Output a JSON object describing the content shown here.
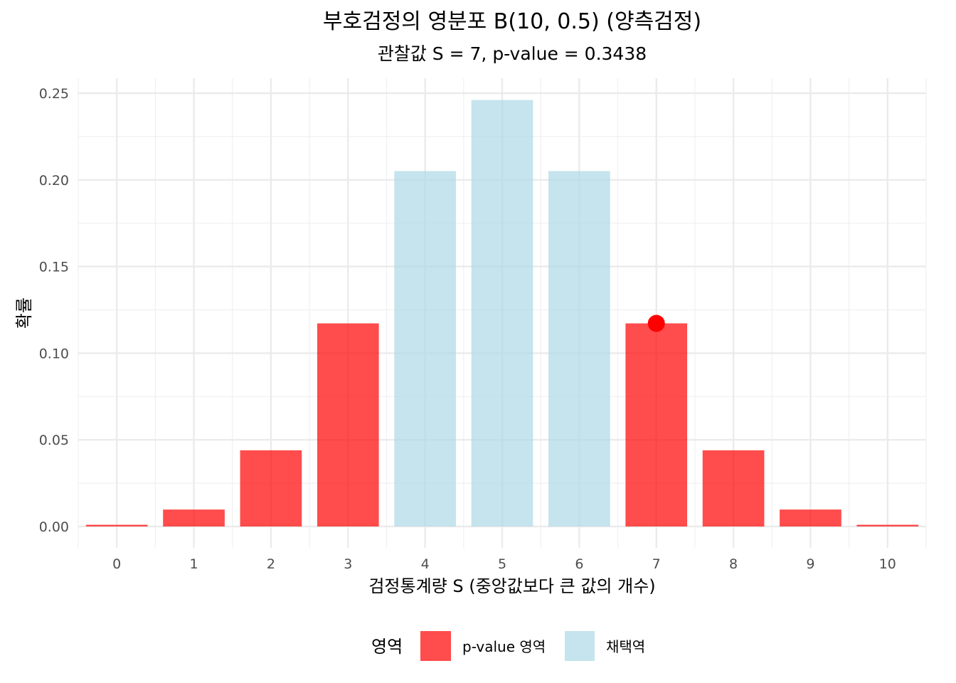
{
  "chart_data": {
    "type": "bar",
    "title": "부호검정의 영분포 B(10, 0.5) (양측검정)",
    "subtitle": "관찰값 S = 7, p-value = 0.3438",
    "xlabel": "검정통계량 S (중앙값보다 큰 값의 개수)",
    "ylabel": "확률",
    "categories": [
      "0",
      "1",
      "2",
      "3",
      "4",
      "5",
      "6",
      "7",
      "8",
      "9",
      "10"
    ],
    "x": [
      0,
      1,
      2,
      3,
      4,
      5,
      6,
      7,
      8,
      9,
      10
    ],
    "values": [
      0.00098,
      0.00977,
      0.04395,
      0.11719,
      0.20508,
      0.24609,
      0.20508,
      0.11719,
      0.04395,
      0.00977,
      0.00098
    ],
    "region": [
      "p-value 영역",
      "p-value 영역",
      "p-value 영역",
      "p-value 영역",
      "채택역",
      "채택역",
      "채택역",
      "p-value 영역",
      "p-value 영역",
      "p-value 영역",
      "p-value 영역"
    ],
    "yticks": [
      0.0,
      0.05,
      0.1,
      0.15,
      0.2,
      0.25
    ],
    "ytick_labels": [
      "0.00",
      "0.05",
      "0.10",
      "0.15",
      "0.20",
      "0.25"
    ],
    "ylim": [
      0,
      0.2562
    ],
    "xlim": [
      -0.5,
      10.5
    ],
    "observed": {
      "x": 7,
      "y": 0.11719,
      "color": "#ff0000"
    },
    "grid": true,
    "legend": {
      "title": "영역",
      "position": "bottom",
      "entries": [
        {
          "label": "p-value 영역",
          "color": "#ff0000"
        },
        {
          "label": "채택역",
          "color": "#add8e6"
        }
      ]
    },
    "bar_opacity": 0.7
  }
}
